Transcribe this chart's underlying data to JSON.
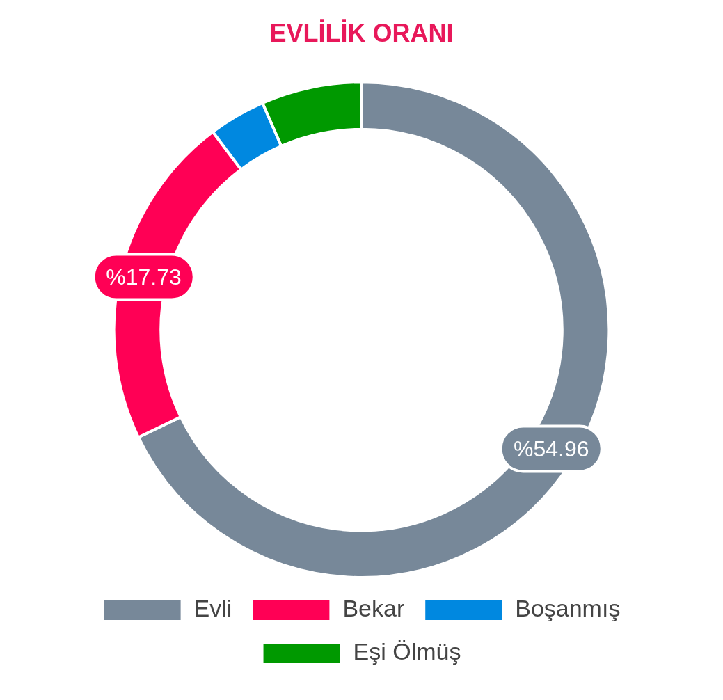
{
  "chart_data": {
    "type": "donut",
    "title": "EVLİLİK ORANI",
    "categories": [
      "Evli",
      "Bekar",
      "Boşanmış",
      "Eşi Ölmüş"
    ],
    "values": [
      54.96,
      17.73,
      3.0,
      5.3
    ],
    "colors": [
      "#778899",
      "#ff0055",
      "#0088e0",
      "#009900"
    ],
    "value_labels": [
      "%54.96",
      "%17.73",
      null,
      null
    ],
    "legend": "bottom"
  }
}
